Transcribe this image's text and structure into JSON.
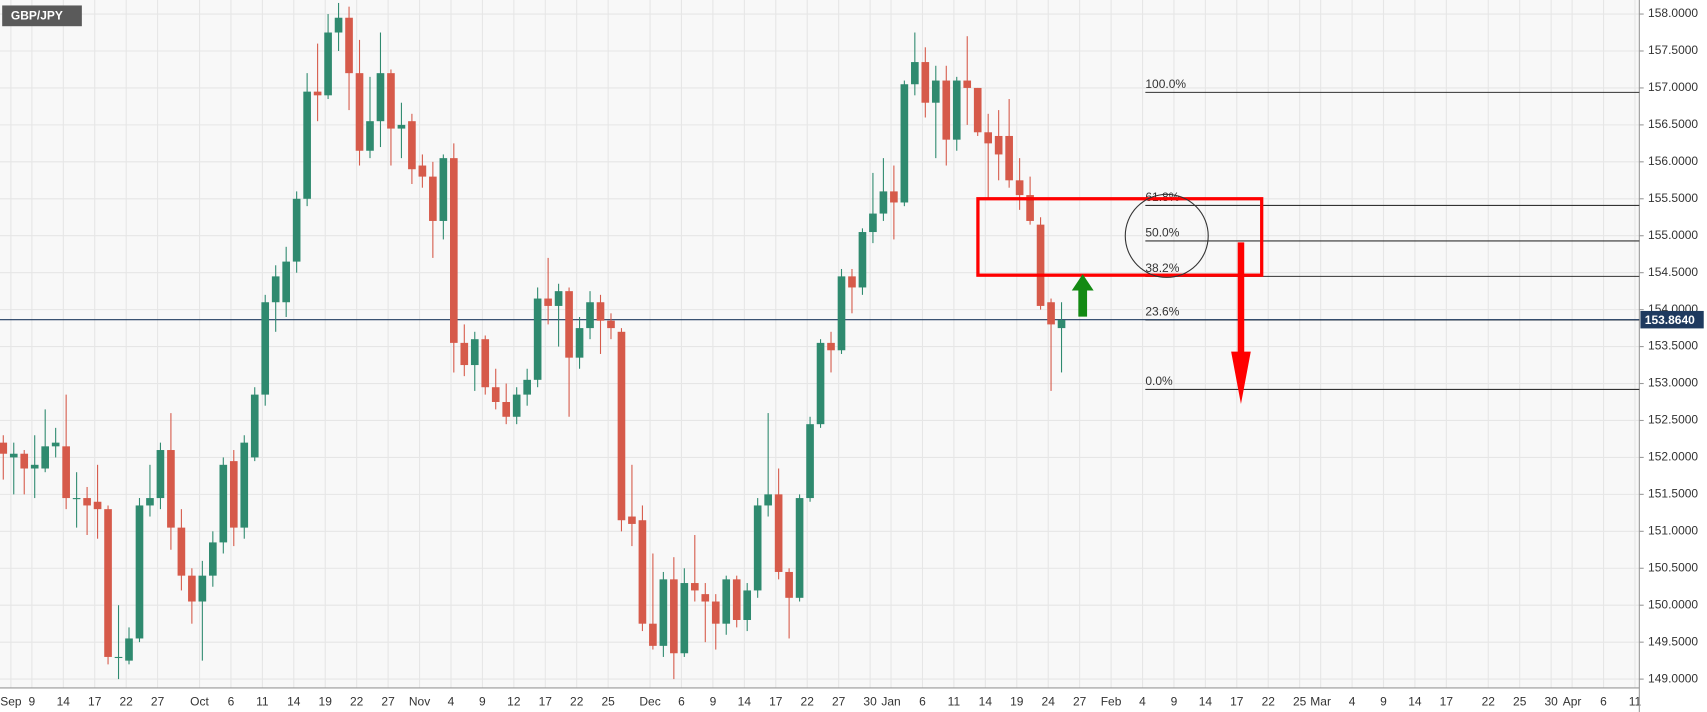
{
  "chart_data": {
    "type": "candlestick",
    "title": "GBP/JPY",
    "up_color": "#2f8a6f",
    "down_color": "#d65a4a",
    "grid": true,
    "ylim": [
      148.88,
      158.19
    ],
    "yticks": [
      {
        "value": 149,
        "label": "149.0000"
      },
      {
        "value": 149.5,
        "label": "149.5000"
      },
      {
        "value": 150,
        "label": "150.0000"
      },
      {
        "value": 150.5,
        "label": "150.5000"
      },
      {
        "value": 151,
        "label": "151.0000"
      },
      {
        "value": 151.5,
        "label": "151.5000"
      },
      {
        "value": 152,
        "label": "152.0000"
      },
      {
        "value": 152.5,
        "label": "152.5000"
      },
      {
        "value": 153,
        "label": "153.0000"
      },
      {
        "value": 153.5,
        "label": "153.5000"
      },
      {
        "value": 154,
        "label": "154.0000"
      },
      {
        "value": 154.5,
        "label": "154.5000"
      },
      {
        "value": 155,
        "label": "155.0000"
      },
      {
        "value": 155.5,
        "label": "155.5000"
      },
      {
        "value": 156,
        "label": "156.0000"
      },
      {
        "value": 156.5,
        "label": "156.5000"
      },
      {
        "value": 157,
        "label": "157.0000"
      },
      {
        "value": 157.5,
        "label": "157.5000"
      },
      {
        "value": 158,
        "label": "158.0000"
      }
    ],
    "last_price": {
      "value": 153.864,
      "label": "153.8640"
    },
    "fib_levels": [
      {
        "value": 156.94,
        "label": "100.0%"
      },
      {
        "value": 155.41,
        "label": "61.8%"
      },
      {
        "value": 154.93,
        "label": "50.0%"
      },
      {
        "value": 154.45,
        "label": "38.2%"
      },
      {
        "value": 153.86,
        "label": "23.6%"
      },
      {
        "value": 152.92,
        "label": "0.0%"
      }
    ],
    "categories": [
      "Sep",
      null,
      "9",
      null,
      null,
      "14",
      null,
      null,
      "17",
      null,
      null,
      "22",
      null,
      null,
      "27",
      null,
      null,
      null,
      "Oct",
      null,
      null,
      "6",
      null,
      null,
      "11",
      null,
      null,
      "14",
      null,
      null,
      "19",
      null,
      null,
      "22",
      null,
      null,
      "27",
      null,
      null,
      "Nov",
      null,
      null,
      "4",
      null,
      null,
      "9",
      null,
      null,
      "12",
      null,
      null,
      "17",
      null,
      null,
      "22",
      null,
      null,
      "25",
      null,
      null,
      null,
      "Dec",
      null,
      null,
      "6",
      null,
      null,
      "9",
      null,
      null,
      "14",
      null,
      null,
      "17",
      null,
      null,
      "22",
      null,
      null,
      "27",
      null,
      null,
      "30",
      null,
      "Jan",
      null,
      null,
      "6",
      null,
      null,
      "11",
      null,
      null,
      "14",
      null,
      null,
      "19",
      null,
      null,
      "24",
      null,
      null,
      "27",
      null,
      null,
      "Feb",
      null,
      null,
      "4",
      null,
      null,
      "9",
      null,
      null,
      "14",
      null,
      null,
      "17",
      null,
      null,
      "22",
      null,
      null,
      "25",
      null,
      "Mar",
      null,
      null,
      "4",
      null,
      null,
      "9",
      null,
      null,
      "14",
      null,
      null,
      "17",
      null,
      null,
      null,
      "22",
      null,
      null,
      "25",
      null,
      null,
      "30",
      null,
      "Apr",
      null,
      null,
      "6",
      null,
      null,
      "11"
    ],
    "open": [
      152.2,
      152.0,
      152.05,
      151.85,
      151.85,
      152.15,
      152.15,
      151.45,
      151.45,
      151.4,
      151.3,
      149.3,
      149.25,
      149.55,
      151.35,
      151.45,
      152.1,
      151.05,
      150.4,
      150.05,
      150.4,
      150.85,
      151.95,
      151.05,
      152.0,
      152.85,
      154.1,
      154.1,
      154.65,
      155.5,
      156.95,
      156.9,
      157.75,
      157.95,
      157.2,
      156.15,
      156.55,
      157.2,
      156.45,
      156.55,
      155.95,
      155.8,
      155.2,
      156.05,
      153.55,
      153.25,
      153.6,
      152.95,
      152.75,
      152.55,
      152.85,
      153.05,
      154.15,
      154.05,
      154.25,
      153.35,
      153.75,
      154.1,
      153.85,
      153.7,
      151.2,
      151.15,
      149.75,
      149.45,
      150.35,
      149.35,
      150.3,
      150.15,
      150.05,
      149.75,
      150.35,
      149.8,
      150.2,
      151.35,
      151.5,
      150.45,
      150.1,
      151.45,
      152.45,
      153.55,
      153.45,
      154.45,
      154.3,
      155.05,
      155.3,
      155.6,
      155.45,
      157.05,
      157.35,
      156.8,
      157.1,
      156.3,
      157.1,
      157.0,
      156.4,
      156.35,
      156.35,
      155.75,
      155.55,
      155.15,
      154.1,
      153.75,
      null,
      null,
      null,
      null,
      null,
      null,
      null,
      null,
      null,
      null,
      null,
      null,
      null,
      null,
      null,
      null,
      null,
      null,
      null,
      null,
      null,
      null,
      null,
      null,
      null,
      null,
      null,
      null,
      null,
      null,
      null,
      null,
      null,
      null,
      null,
      null,
      null,
      null,
      null,
      null,
      null,
      null,
      null,
      null,
      null,
      null,
      null,
      null,
      null,
      null,
      null,
      null,
      null,
      null
    ],
    "high": [
      152.3,
      152.2,
      152.1,
      152.3,
      152.65,
      152.4,
      152.85,
      151.8,
      151.6,
      151.9,
      151.35,
      150.0,
      149.7,
      151.45,
      151.9,
      152.2,
      152.6,
      151.3,
      150.5,
      150.6,
      151.0,
      152.0,
      152.1,
      152.3,
      152.95,
      154.2,
      154.6,
      154.85,
      155.6,
      157.2,
      157.6,
      158.0,
      158.15,
      158.1,
      157.65,
      157.15,
      157.75,
      157.25,
      156.8,
      156.65,
      156.1,
      156.0,
      156.1,
      156.25,
      153.8,
      153.7,
      153.65,
      153.2,
      153.0,
      152.95,
      153.2,
      154.3,
      154.7,
      154.35,
      154.3,
      153.9,
      154.25,
      154.2,
      153.95,
      153.75,
      151.9,
      151.35,
      150.7,
      150.45,
      150.65,
      150.5,
      150.95,
      150.3,
      150.15,
      150.4,
      150.4,
      150.3,
      151.45,
      152.6,
      151.85,
      150.5,
      151.5,
      152.55,
      153.6,
      153.7,
      154.55,
      154.55,
      155.1,
      155.85,
      156.05,
      155.95,
      157.1,
      157.75,
      157.55,
      157.3,
      157.3,
      157.15,
      157.7,
      157.0,
      156.65,
      156.7,
      156.85,
      156.05,
      155.8,
      155.25,
      154.15,
      154.1,
      null,
      null,
      null,
      null,
      null,
      null,
      null,
      null,
      null,
      null,
      null,
      null,
      null,
      null,
      null,
      null,
      null,
      null,
      null,
      null,
      null,
      null,
      null,
      null,
      null,
      null,
      null,
      null,
      null,
      null,
      null,
      null,
      null,
      null,
      null,
      null,
      null,
      null,
      null,
      null,
      null,
      null,
      null,
      null,
      null,
      null,
      null,
      null,
      null,
      null,
      null,
      null,
      null,
      null
    ],
    "low": [
      151.7,
      151.5,
      151.5,
      151.45,
      151.8,
      152.0,
      151.3,
      151.05,
      150.95,
      150.9,
      149.2,
      149.0,
      149.2,
      149.5,
      151.2,
      151.3,
      150.75,
      150.2,
      149.75,
      149.25,
      150.25,
      150.7,
      150.8,
      150.9,
      151.95,
      152.7,
      153.7,
      153.9,
      154.5,
      155.4,
      156.55,
      156.85,
      157.5,
      156.7,
      155.95,
      156.05,
      156.2,
      155.95,
      156.05,
      155.7,
      155.65,
      154.7,
      154.95,
      153.15,
      153.1,
      152.9,
      152.85,
      152.65,
      152.45,
      152.45,
      152.7,
      152.95,
      153.8,
      153.5,
      152.55,
      153.2,
      153.6,
      153.4,
      153.6,
      151.0,
      150.8,
      149.65,
      149.4,
      149.3,
      149.0,
      149.3,
      150.05,
      149.5,
      149.4,
      149.6,
      149.7,
      149.65,
      150.1,
      151.2,
      150.35,
      149.55,
      150.05,
      151.4,
      152.4,
      153.15,
      153.4,
      153.95,
      154.2,
      154.9,
      155.2,
      154.95,
      155.4,
      156.9,
      156.6,
      156.05,
      155.95,
      156.15,
      156.5,
      156.35,
      155.5,
      155.75,
      155.65,
      155.35,
      155.15,
      154.0,
      152.9,
      153.15,
      null,
      null,
      null,
      null,
      null,
      null,
      null,
      null,
      null,
      null,
      null,
      null,
      null,
      null,
      null,
      null,
      null,
      null,
      null,
      null,
      null,
      null,
      null,
      null,
      null,
      null,
      null,
      null,
      null,
      null,
      null,
      null,
      null,
      null,
      null,
      null,
      null,
      null,
      null,
      null,
      null,
      null,
      null,
      null,
      null,
      null,
      null,
      null,
      null,
      null,
      null,
      null,
      null,
      null
    ],
    "close": [
      152.05,
      152.05,
      151.85,
      151.9,
      152.15,
      152.2,
      151.45,
      151.45,
      151.35,
      151.3,
      149.3,
      149.3,
      149.55,
      151.35,
      151.45,
      152.1,
      151.05,
      150.4,
      150.05,
      150.4,
      150.85,
      151.9,
      151.05,
      152.2,
      152.85,
      154.1,
      154.45,
      154.65,
      155.5,
      156.95,
      156.9,
      157.75,
      157.95,
      157.2,
      156.15,
      156.55,
      157.2,
      156.45,
      156.5,
      155.9,
      155.8,
      155.2,
      156.05,
      153.55,
      153.25,
      153.6,
      152.95,
      152.75,
      152.55,
      152.85,
      153.05,
      154.15,
      154.05,
      154.25,
      153.35,
      153.75,
      154.1,
      153.85,
      153.75,
      151.15,
      151.1,
      149.75,
      149.45,
      150.35,
      149.35,
      150.3,
      150.2,
      150.05,
      149.75,
      150.35,
      149.8,
      150.2,
      151.35,
      151.5,
      150.45,
      150.1,
      151.45,
      152.45,
      153.55,
      153.45,
      154.45,
      154.3,
      155.05,
      155.3,
      155.6,
      155.45,
      157.05,
      157.35,
      156.8,
      157.1,
      156.3,
      157.1,
      157.0,
      156.4,
      156.25,
      156.1,
      155.75,
      155.55,
      155.2,
      154.05,
      153.8,
      153.86,
      null,
      null,
      null,
      null,
      null,
      null,
      null,
      null,
      null,
      null,
      null,
      null,
      null,
      null,
      null,
      null,
      null,
      null,
      null,
      null,
      null,
      null,
      null,
      null,
      null,
      null,
      null,
      null,
      null,
      null,
      null,
      null,
      null,
      null,
      null,
      null,
      null,
      null,
      null,
      null,
      null,
      null,
      null,
      null,
      null,
      null,
      null,
      null,
      null,
      null,
      null,
      null,
      null,
      null
    ]
  }
}
